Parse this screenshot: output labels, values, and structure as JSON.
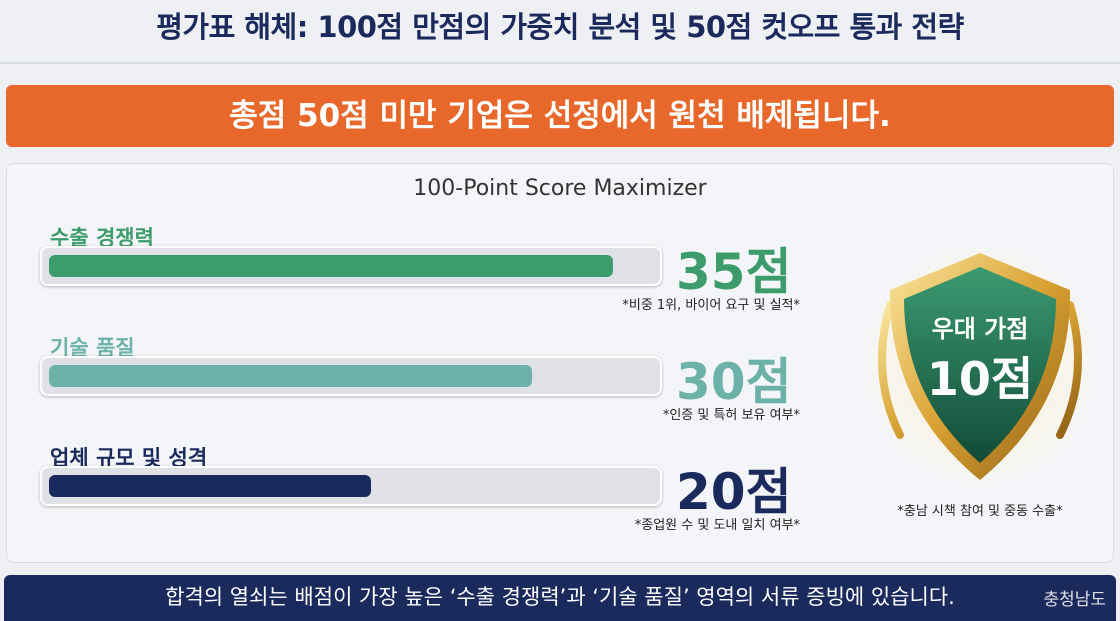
{
  "title": "평가표 해체: 100점 만점의 가중치 분석 및 50점 컷오프 통과 전략",
  "banner": "총점 50점 미만 기업은 선정에서 원천 배제됩니다.",
  "panel": {
    "heading": "100-Point Score Maximizer",
    "items": [
      {
        "label": "수출 경쟁력",
        "score": 35,
        "unit": "점",
        "note": "*비중 1위, 바이어 요구 및 실적*",
        "color": "#3d9c6b"
      },
      {
        "label": "기술 품질",
        "score": 30,
        "unit": "점",
        "note": "*인증 및 특허 보유 여부*",
        "color": "#6cb2a9"
      },
      {
        "label": "업체 규모 및 성격",
        "score": 20,
        "unit": "점",
        "note": "*종업원 수 및 도내 일치 여부*",
        "color": "#1b2a5c"
      }
    ]
  },
  "badge": {
    "label": "우대 가점",
    "score": 10,
    "unit": "점",
    "note": "*충남 시책 참여 및 중동 수출*"
  },
  "footer": "합격의 열쇠는 배점이 가장 높은 ‘수출 경쟁력’과 ‘기술 품질’ 영역의 서류 증빙에 있습니다.",
  "watermark": "충청남도"
}
